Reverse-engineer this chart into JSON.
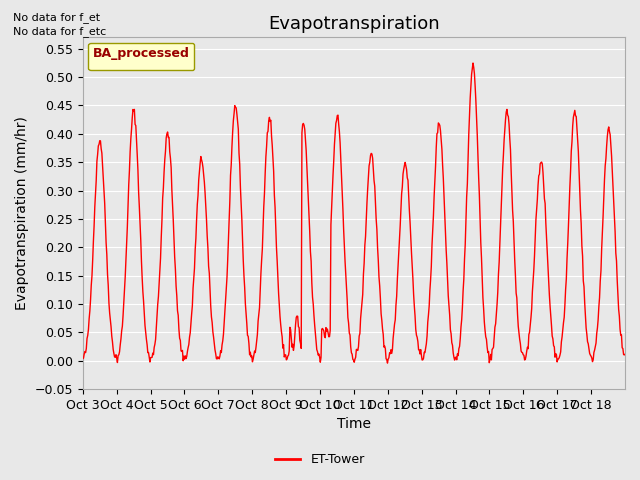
{
  "title": "Evapotranspiration",
  "ylabel": "Evapotranspiration (mm/hr)",
  "xlabel": "Time",
  "ylim": [
    -0.05,
    0.57
  ],
  "yticks": [
    -0.05,
    0.0,
    0.05,
    0.1,
    0.15,
    0.2,
    0.25,
    0.3,
    0.35,
    0.4,
    0.45,
    0.5,
    0.55
  ],
  "line_color": "red",
  "line_width": 1.0,
  "bg_color": "#e8e8e8",
  "legend_label": "ET-Tower",
  "legend_box_color": "#ffffcc",
  "legend_box_edge": "#999900",
  "text_annotations": [
    "No data for f_et",
    "No data for f_etc"
  ],
  "xticklabels": [
    "Oct 3",
    "Oct 4",
    "Oct 5",
    "Oct 6",
    "Oct 7",
    "Oct 8",
    "Oct 9",
    "Oct 10",
    "Oct 11",
    "Oct 12",
    "Oct 13",
    "Oct 14",
    "Oct 15",
    "Oct 16",
    "Oct 17",
    "Oct 18"
  ],
  "day_peaks": [
    0.39,
    0.44,
    0.4,
    0.355,
    0.45,
    0.43,
    0.415,
    0.43,
    0.365,
    0.35,
    0.42,
    0.52,
    0.44,
    0.35,
    0.44,
    0.41
  ],
  "title_fontsize": 13,
  "axis_label_fontsize": 10,
  "tick_fontsize": 9
}
